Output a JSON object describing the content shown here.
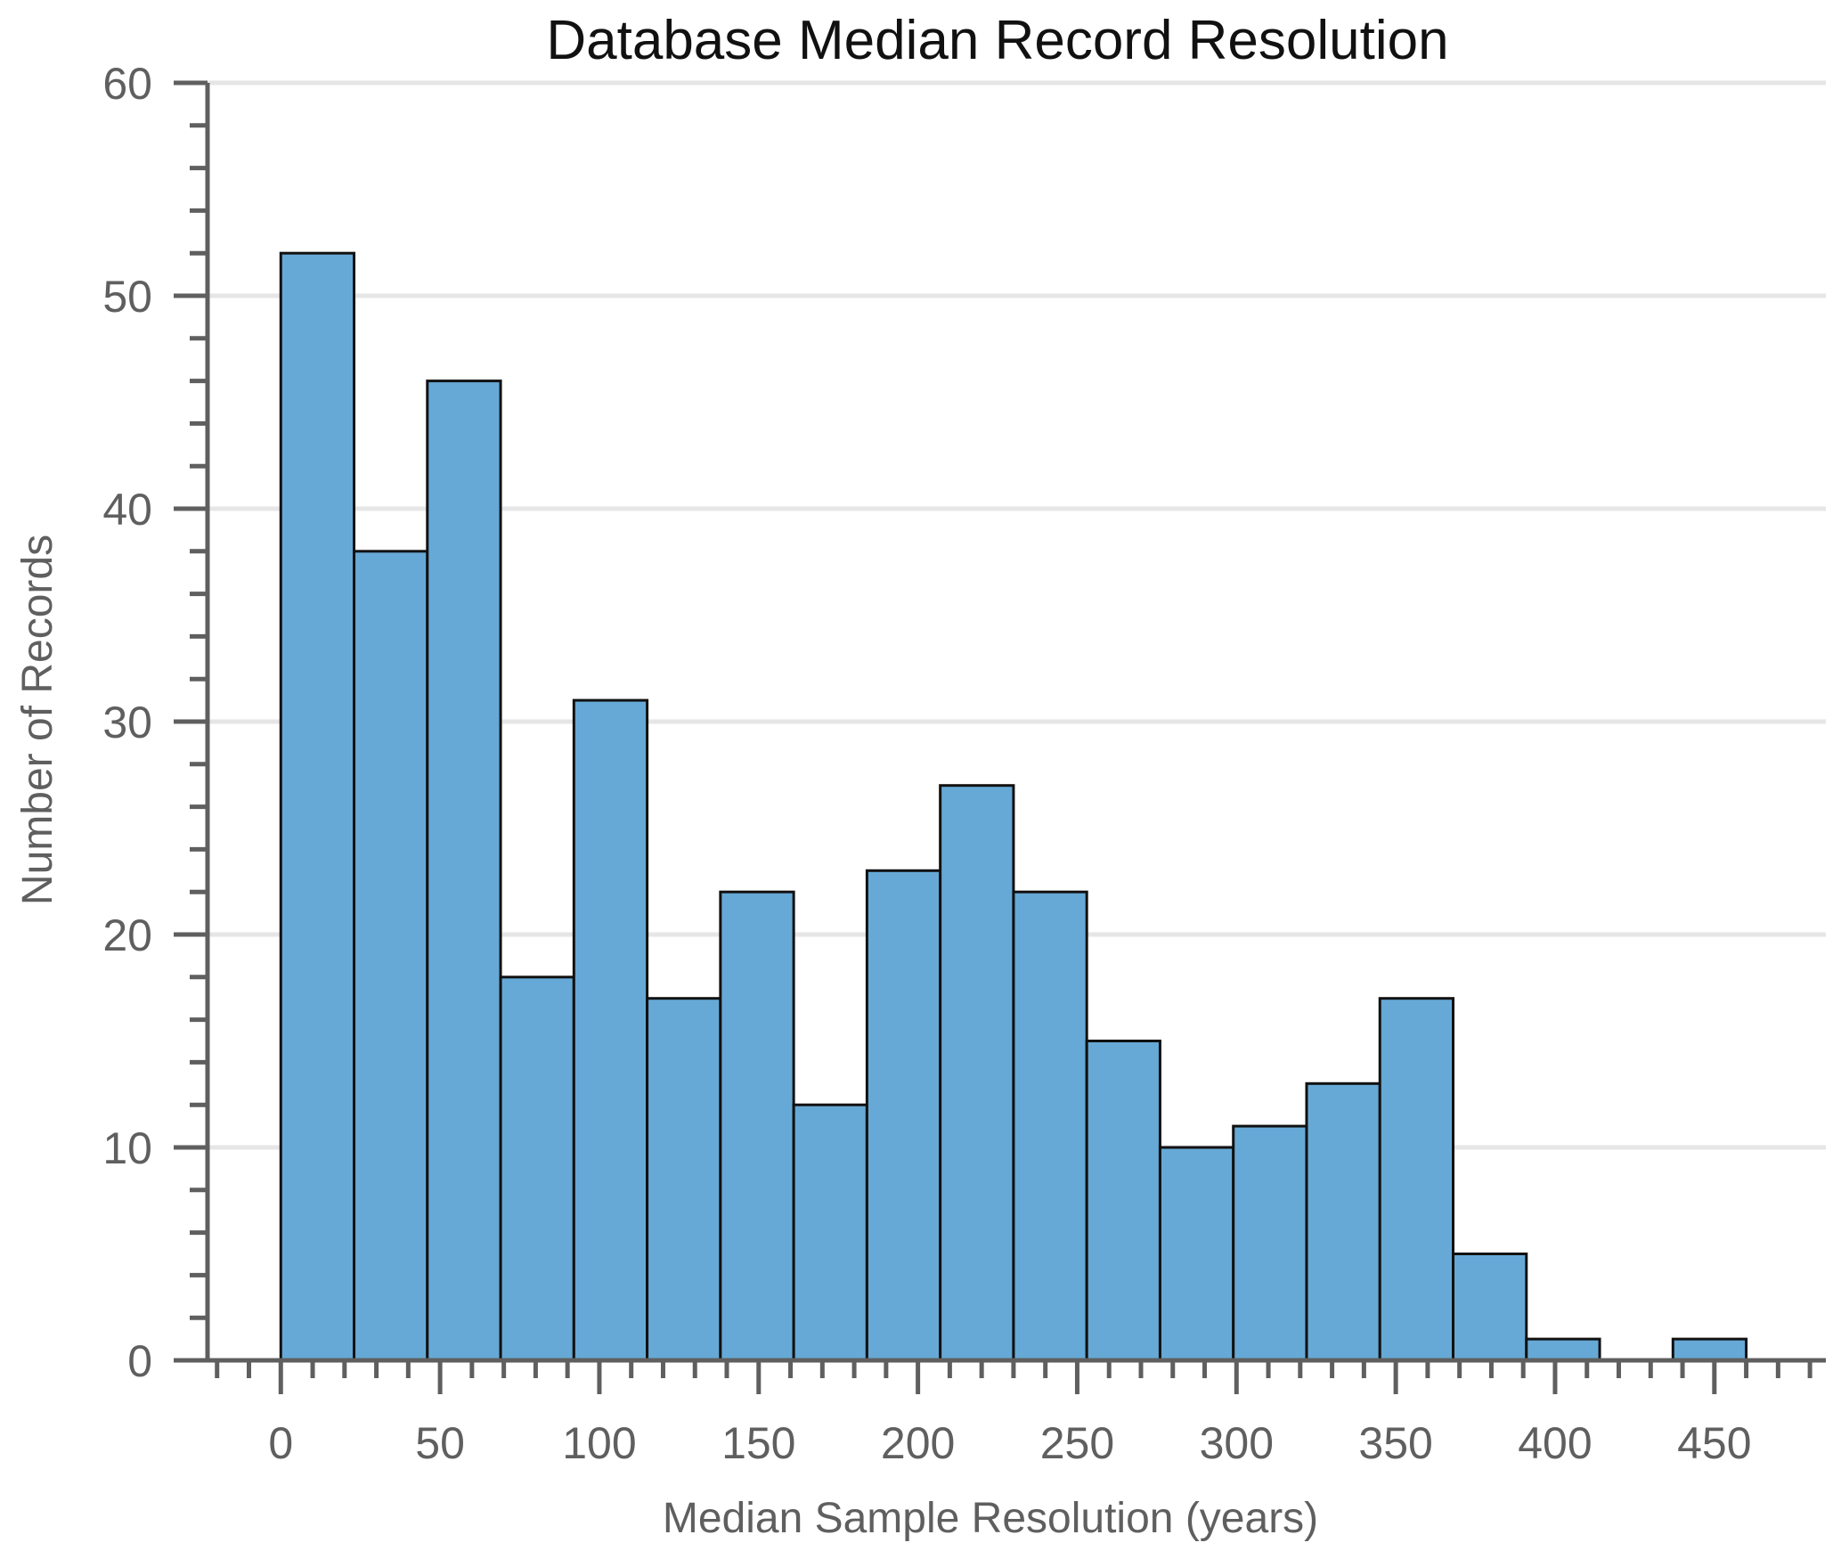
{
  "chart_data": {
    "type": "bar",
    "title": "Database Median Record Resolution",
    "xlabel": "Median Sample Resolution (years)",
    "ylabel": "Number of Records",
    "bar_color": "#66a9d6",
    "bin_width": 23,
    "bins": [
      {
        "x0": 0,
        "x1": 23,
        "count": 52
      },
      {
        "x0": 23,
        "x1": 46,
        "count": 38
      },
      {
        "x0": 46,
        "x1": 69,
        "count": 46
      },
      {
        "x0": 69,
        "x1": 92,
        "count": 18
      },
      {
        "x0": 92,
        "x1": 115,
        "count": 31
      },
      {
        "x0": 115,
        "x1": 138,
        "count": 17
      },
      {
        "x0": 138,
        "x1": 161,
        "count": 22
      },
      {
        "x0": 161,
        "x1": 184,
        "count": 12
      },
      {
        "x0": 184,
        "x1": 207,
        "count": 23
      },
      {
        "x0": 207,
        "x1": 230,
        "count": 27
      },
      {
        "x0": 230,
        "x1": 253,
        "count": 22
      },
      {
        "x0": 253,
        "x1": 276,
        "count": 15
      },
      {
        "x0": 276,
        "x1": 299,
        "count": 10
      },
      {
        "x0": 299,
        "x1": 322,
        "count": 11
      },
      {
        "x0": 322,
        "x1": 345,
        "count": 13
      },
      {
        "x0": 345,
        "x1": 368,
        "count": 17
      },
      {
        "x0": 368,
        "x1": 391,
        "count": 5
      },
      {
        "x0": 391,
        "x1": 414,
        "count": 1
      },
      {
        "x0": 414,
        "x1": 437,
        "count": 0
      },
      {
        "x0": 437,
        "x1": 460,
        "count": 1
      }
    ],
    "xlim": [
      -23,
      485
    ],
    "ylim": [
      0,
      60
    ],
    "x_ticks": [
      "0",
      "50",
      "100",
      "150",
      "200",
      "250",
      "300",
      "350",
      "400",
      "450"
    ],
    "y_ticks": [
      "0",
      "10",
      "20",
      "30",
      "40",
      "50",
      "60"
    ],
    "x_minor_step": 10,
    "y_minor_step": 2,
    "grid": "horizontal",
    "legend": "none"
  }
}
